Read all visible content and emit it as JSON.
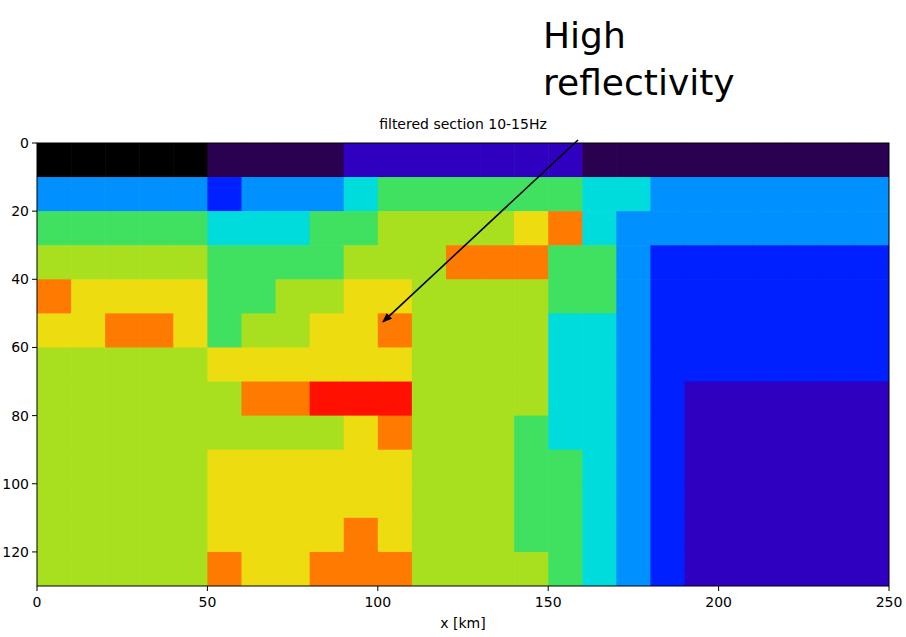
{
  "chart_data": {
    "type": "heatmap",
    "title": "filtered section 10-15Hz",
    "x_label": "x [km]",
    "annotation": {
      "text": "High reflectivity",
      "x": 101.5,
      "y": 52.5
    },
    "xlim": [
      0,
      250
    ],
    "ylim": [
      130,
      0
    ],
    "xticks": [
      0,
      50,
      100,
      150,
      200,
      250
    ],
    "yticks": [
      0,
      20,
      40,
      60,
      80,
      100,
      120
    ],
    "x": [
      5,
      15,
      25,
      35,
      45,
      55,
      65,
      75,
      85,
      95,
      105,
      115,
      125,
      135,
      145,
      155,
      165,
      175,
      185,
      195,
      205,
      215,
      225,
      235,
      245
    ],
    "y": [
      5,
      15,
      25,
      35,
      45,
      55,
      65,
      75,
      85,
      95,
      105,
      115,
      125
    ],
    "zlim": [
      0,
      10
    ],
    "z": [
      [
        0,
        0,
        0,
        0,
        0,
        1,
        1,
        1,
        1,
        2,
        2,
        2,
        2,
        2,
        2,
        2,
        1,
        1,
        1,
        1,
        1,
        1,
        1,
        1,
        1
      ],
      [
        4,
        4,
        4,
        4,
        4,
        3,
        4,
        4,
        4,
        5,
        6,
        6,
        6,
        6,
        6,
        6,
        5,
        5,
        4,
        4,
        4,
        4,
        4,
        4,
        4
      ],
      [
        6,
        6,
        6,
        6,
        6,
        5,
        5,
        5,
        6,
        6,
        7,
        7,
        7,
        7,
        8,
        9,
        5,
        4,
        4,
        4,
        4,
        4,
        4,
        4,
        4
      ],
      [
        7,
        7,
        7,
        7,
        7,
        6,
        6,
        6,
        6,
        7,
        7,
        7,
        9,
        9,
        9,
        6,
        6,
        4,
        3,
        3,
        3,
        3,
        3,
        3,
        3
      ],
      [
        9,
        8,
        8,
        8,
        8,
        6,
        6,
        7,
        7,
        8,
        8,
        7,
        7,
        7,
        7,
        6,
        6,
        4,
        3,
        3,
        3,
        3,
        3,
        3,
        3
      ],
      [
        8,
        8,
        9,
        9,
        8,
        6,
        7,
        7,
        8,
        8,
        9,
        7,
        7,
        7,
        7,
        5,
        5,
        4,
        3,
        3,
        3,
        3,
        3,
        3,
        3
      ],
      [
        7,
        7,
        7,
        7,
        7,
        8,
        8,
        8,
        8,
        8,
        8,
        7,
        7,
        7,
        7,
        5,
        5,
        4,
        3,
        3,
        3,
        3,
        3,
        3,
        3
      ],
      [
        7,
        7,
        7,
        7,
        7,
        7,
        9,
        9,
        10,
        10,
        10,
        7,
        7,
        7,
        7,
        5,
        5,
        4,
        3,
        2,
        2,
        2,
        2,
        2,
        2
      ],
      [
        7,
        7,
        7,
        7,
        7,
        7,
        7,
        7,
        7,
        8,
        9,
        7,
        7,
        7,
        6,
        5,
        5,
        4,
        3,
        2,
        2,
        2,
        2,
        2,
        2
      ],
      [
        7,
        7,
        7,
        7,
        7,
        8,
        8,
        8,
        8,
        8,
        8,
        7,
        7,
        7,
        6,
        6,
        5,
        4,
        3,
        2,
        2,
        2,
        2,
        2,
        2
      ],
      [
        7,
        7,
        7,
        7,
        7,
        8,
        8,
        8,
        8,
        8,
        8,
        7,
        7,
        7,
        6,
        6,
        5,
        4,
        3,
        2,
        2,
        2,
        2,
        2,
        2
      ],
      [
        7,
        7,
        7,
        7,
        7,
        8,
        8,
        8,
        8,
        9,
        8,
        7,
        7,
        7,
        6,
        6,
        5,
        4,
        3,
        2,
        2,
        2,
        2,
        2,
        2
      ],
      [
        7,
        7,
        7,
        7,
        7,
        9,
        8,
        8,
        9,
        9,
        9,
        7,
        7,
        7,
        7,
        6,
        5,
        4,
        3,
        2,
        2,
        2,
        2,
        2,
        2
      ]
    ]
  }
}
